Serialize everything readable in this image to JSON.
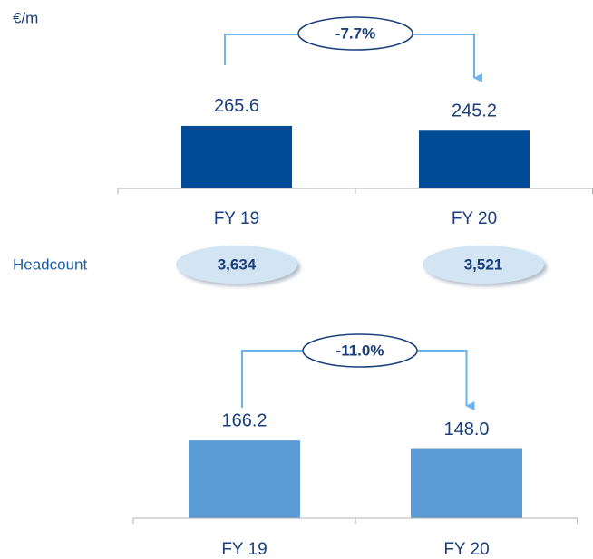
{
  "unit": "€/m",
  "headcount": {
    "label": "Headcount",
    "values": [
      3634,
      3521
    ],
    "value_labels": [
      "3,634",
      "3,521"
    ]
  },
  "chart_data": [
    {
      "type": "bar",
      "categories": [
        "FY 19",
        "FY 20"
      ],
      "values": [
        265.6,
        245.2
      ],
      "color": "#004a96",
      "ylim": [
        0,
        500
      ],
      "annotation": "-7.7%"
    },
    {
      "type": "bar",
      "categories": [
        "FY 19",
        "FY 20"
      ],
      "values": [
        166.2,
        148.0
      ],
      "value_labels": [
        "166.2",
        "148.0"
      ],
      "color": "#5b9bd5",
      "ylim": [
        0,
        300
      ],
      "annotation": "-11.0%"
    }
  ]
}
